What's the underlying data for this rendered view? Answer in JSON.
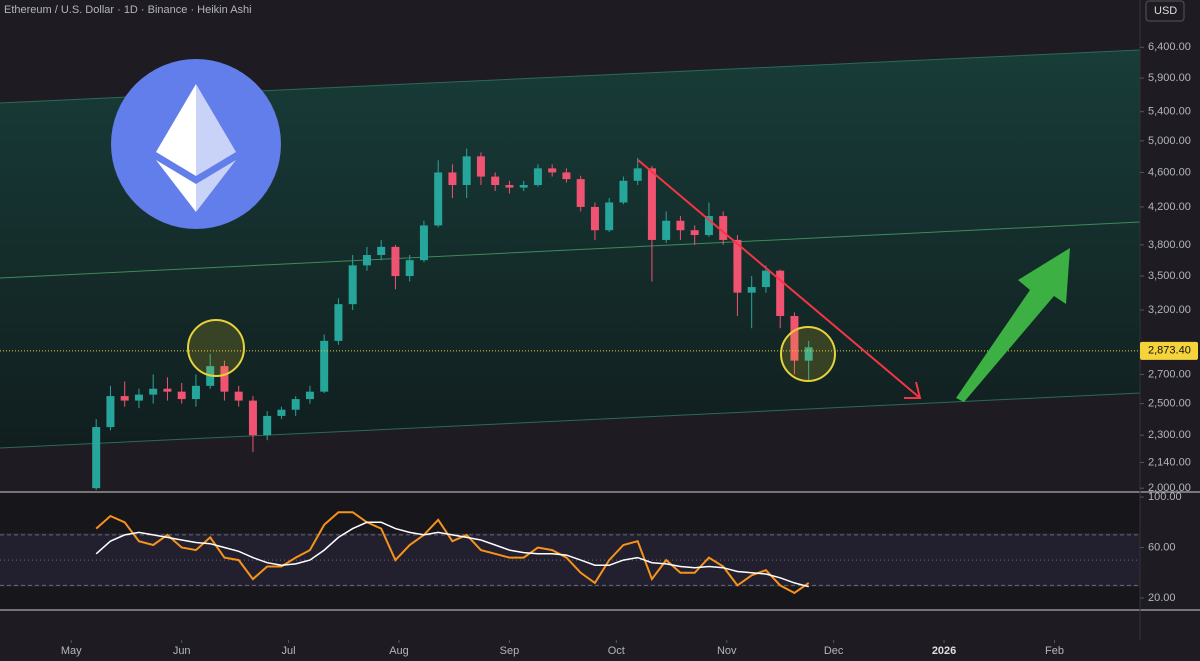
{
  "chart_data": [
    {
      "type": "candlestick",
      "title": "Ethereum / U.S. Dollar · 1D · Binance · Heikin Ashi",
      "currency": "USD",
      "log_scale": true,
      "up_color": "#26a69a",
      "down_color": "#ef5371",
      "xlim": [
        "2025-04-11",
        "2026-02-25"
      ],
      "ylim": [
        1980,
        7250
      ],
      "yticks": [
        {
          "value": 2000,
          "label": "2,000.00"
        },
        {
          "value": 2140,
          "label": "2,140.00"
        },
        {
          "value": 2300,
          "label": "2,300.00"
        },
        {
          "value": 2500,
          "label": "2,500.00"
        },
        {
          "value": 2700,
          "label": "2,700.00"
        },
        {
          "value": 3200,
          "label": "3,200.00"
        },
        {
          "value": 3500,
          "label": "3,500.00"
        },
        {
          "value": 3800,
          "label": "3,800.00"
        },
        {
          "value": 4200,
          "label": "4,200.00"
        },
        {
          "value": 4600,
          "label": "4,600.00"
        },
        {
          "value": 5000,
          "label": "5,000.00"
        },
        {
          "value": 5400,
          "label": "5,400.00"
        },
        {
          "value": 5900,
          "label": "5,900.00"
        },
        {
          "value": 6400,
          "label": "6,400.00"
        }
      ],
      "last_price": {
        "value": 2873.4,
        "label": "2,873.40"
      },
      "x": [
        "2025-05-08",
        "2025-05-12",
        "2025-05-16",
        "2025-05-20",
        "2025-05-24",
        "2025-05-28",
        "2025-06-01",
        "2025-06-05",
        "2025-06-09",
        "2025-06-13",
        "2025-06-17",
        "2025-06-21",
        "2025-06-25",
        "2025-06-29",
        "2025-07-03",
        "2025-07-07",
        "2025-07-11",
        "2025-07-15",
        "2025-07-19",
        "2025-07-23",
        "2025-07-27",
        "2025-07-31",
        "2025-08-04",
        "2025-08-08",
        "2025-08-12",
        "2025-08-16",
        "2025-08-20",
        "2025-08-24",
        "2025-08-28",
        "2025-09-01",
        "2025-09-05",
        "2025-09-09",
        "2025-09-13",
        "2025-09-17",
        "2025-09-21",
        "2025-09-25",
        "2025-09-29",
        "2025-10-03",
        "2025-10-07",
        "2025-10-11",
        "2025-10-15",
        "2025-10-19",
        "2025-10-23",
        "2025-10-27",
        "2025-10-31",
        "2025-11-04",
        "2025-11-08",
        "2025-11-12",
        "2025-11-16",
        "2025-11-20",
        "2025-11-24"
      ],
      "open": [
        2000,
        2350,
        2550,
        2520,
        2560,
        2600,
        2580,
        2530,
        2620,
        2760,
        2580,
        2520,
        2300,
        2420,
        2460,
        2530,
        2580,
        2950,
        3250,
        3600,
        3700,
        3780,
        3500,
        3650,
        4000,
        4600,
        4450,
        4800,
        4550,
        4450,
        4420,
        4450,
        4650,
        4600,
        4520,
        4200,
        3950,
        4250,
        4500,
        4650,
        3850,
        4050,
        3950,
        3900,
        4100,
        3850,
        3350,
        3400,
        3550,
        3150,
        2800
      ],
      "high": [
        2400,
        2620,
        2650,
        2600,
        2700,
        2680,
        2640,
        2700,
        2850,
        2800,
        2620,
        2550,
        2450,
        2480,
        2550,
        2620,
        3000,
        3300,
        3700,
        3780,
        3850,
        3800,
        3700,
        4050,
        4750,
        4700,
        4900,
        4850,
        4600,
        4500,
        4500,
        4700,
        4700,
        4650,
        4560,
        4250,
        4300,
        4550,
        4780,
        4680,
        4150,
        4100,
        4000,
        4250,
        4150,
        3900,
        3500,
        3600,
        3560,
        3180,
        2950
      ],
      "low": [
        1990,
        2330,
        2480,
        2470,
        2500,
        2520,
        2500,
        2480,
        2600,
        2520,
        2480,
        2200,
        2270,
        2400,
        2420,
        2500,
        2570,
        2920,
        3200,
        3550,
        3650,
        3380,
        3450,
        3630,
        3980,
        4300,
        4300,
        4450,
        4380,
        4350,
        4380,
        4430,
        4550,
        4480,
        4150,
        3850,
        3930,
        4230,
        4450,
        3450,
        3820,
        3850,
        3800,
        3880,
        3800,
        3150,
        3050,
        3350,
        3050,
        2700,
        2650
      ],
      "close": [
        2350,
        2550,
        2520,
        2560,
        2600,
        2580,
        2530,
        2620,
        2760,
        2580,
        2520,
        2300,
        2420,
        2460,
        2530,
        2580,
        2950,
        3250,
        3600,
        3700,
        3780,
        3500,
        3650,
        4000,
        4600,
        4450,
        4800,
        4550,
        4450,
        4420,
        4450,
        4650,
        4600,
        4520,
        4200,
        3950,
        4250,
        4500,
        4650,
        3850,
        4050,
        3950,
        3900,
        4100,
        3850,
        3350,
        3400,
        3550,
        3150,
        2800,
        2900
      ]
    },
    {
      "type": "line",
      "ylim": [
        10.5,
        104
      ],
      "yticks": [
        {
          "value": 20,
          "label": "20.00"
        },
        {
          "value": 60,
          "label": "60.00"
        },
        {
          "value": 100,
          "label": "100.00"
        }
      ],
      "bands": [
        30,
        50,
        70
      ],
      "xlim": [
        "2025-04-11",
        "2026-02-25"
      ],
      "xticks": [
        {
          "value": "2025-05-01",
          "label": "May"
        },
        {
          "value": "2025-06-01",
          "label": "Jun"
        },
        {
          "value": "2025-07-01",
          "label": "Jul"
        },
        {
          "value": "2025-08-01",
          "label": "Aug"
        },
        {
          "value": "2025-09-01",
          "label": "Sep"
        },
        {
          "value": "2025-10-01",
          "label": "Oct"
        },
        {
          "value": "2025-11-01",
          "label": "Nov"
        },
        {
          "value": "2025-12-01",
          "label": "Dec"
        },
        {
          "value": "2026-01-01",
          "label": "2026"
        },
        {
          "value": "2026-02-01",
          "label": "Feb"
        }
      ],
      "x": [
        "2025-05-08",
        "2025-05-12",
        "2025-05-16",
        "2025-05-20",
        "2025-05-24",
        "2025-05-28",
        "2025-06-01",
        "2025-06-05",
        "2025-06-09",
        "2025-06-13",
        "2025-06-17",
        "2025-06-21",
        "2025-06-25",
        "2025-06-29",
        "2025-07-03",
        "2025-07-07",
        "2025-07-11",
        "2025-07-15",
        "2025-07-19",
        "2025-07-23",
        "2025-07-27",
        "2025-07-31",
        "2025-08-04",
        "2025-08-08",
        "2025-08-12",
        "2025-08-16",
        "2025-08-20",
        "2025-08-24",
        "2025-08-28",
        "2025-09-01",
        "2025-09-05",
        "2025-09-09",
        "2025-09-13",
        "2025-09-17",
        "2025-09-21",
        "2025-09-25",
        "2025-09-29",
        "2025-10-03",
        "2025-10-07",
        "2025-10-11",
        "2025-10-15",
        "2025-10-19",
        "2025-10-23",
        "2025-10-27",
        "2025-10-31",
        "2025-11-04",
        "2025-11-08",
        "2025-11-12",
        "2025-11-16",
        "2025-11-20",
        "2025-11-24"
      ],
      "series": [
        {
          "color": "#f7931a",
          "values": [
            75,
            85,
            80,
            65,
            62,
            70,
            60,
            58,
            68,
            52,
            50,
            35,
            45,
            45,
            52,
            58,
            78,
            88,
            88,
            80,
            75,
            50,
            62,
            70,
            82,
            65,
            70,
            58,
            55,
            52,
            52,
            60,
            58,
            52,
            40,
            32,
            50,
            62,
            65,
            35,
            50,
            40,
            40,
            52,
            45,
            30,
            38,
            42,
            30,
            24,
            32
          ]
        },
        {
          "color": "#ffffff",
          "values": [
            55,
            65,
            70,
            72,
            70,
            68,
            66,
            64,
            63,
            60,
            57,
            52,
            48,
            46,
            47,
            50,
            58,
            68,
            75,
            80,
            80,
            75,
            72,
            70,
            72,
            70,
            68,
            66,
            62,
            58,
            56,
            55,
            55,
            54,
            50,
            46,
            46,
            50,
            52,
            48,
            47,
            45,
            44,
            45,
            44,
            41,
            40,
            39,
            36,
            32,
            29
          ]
        }
      ]
    }
  ]
}
